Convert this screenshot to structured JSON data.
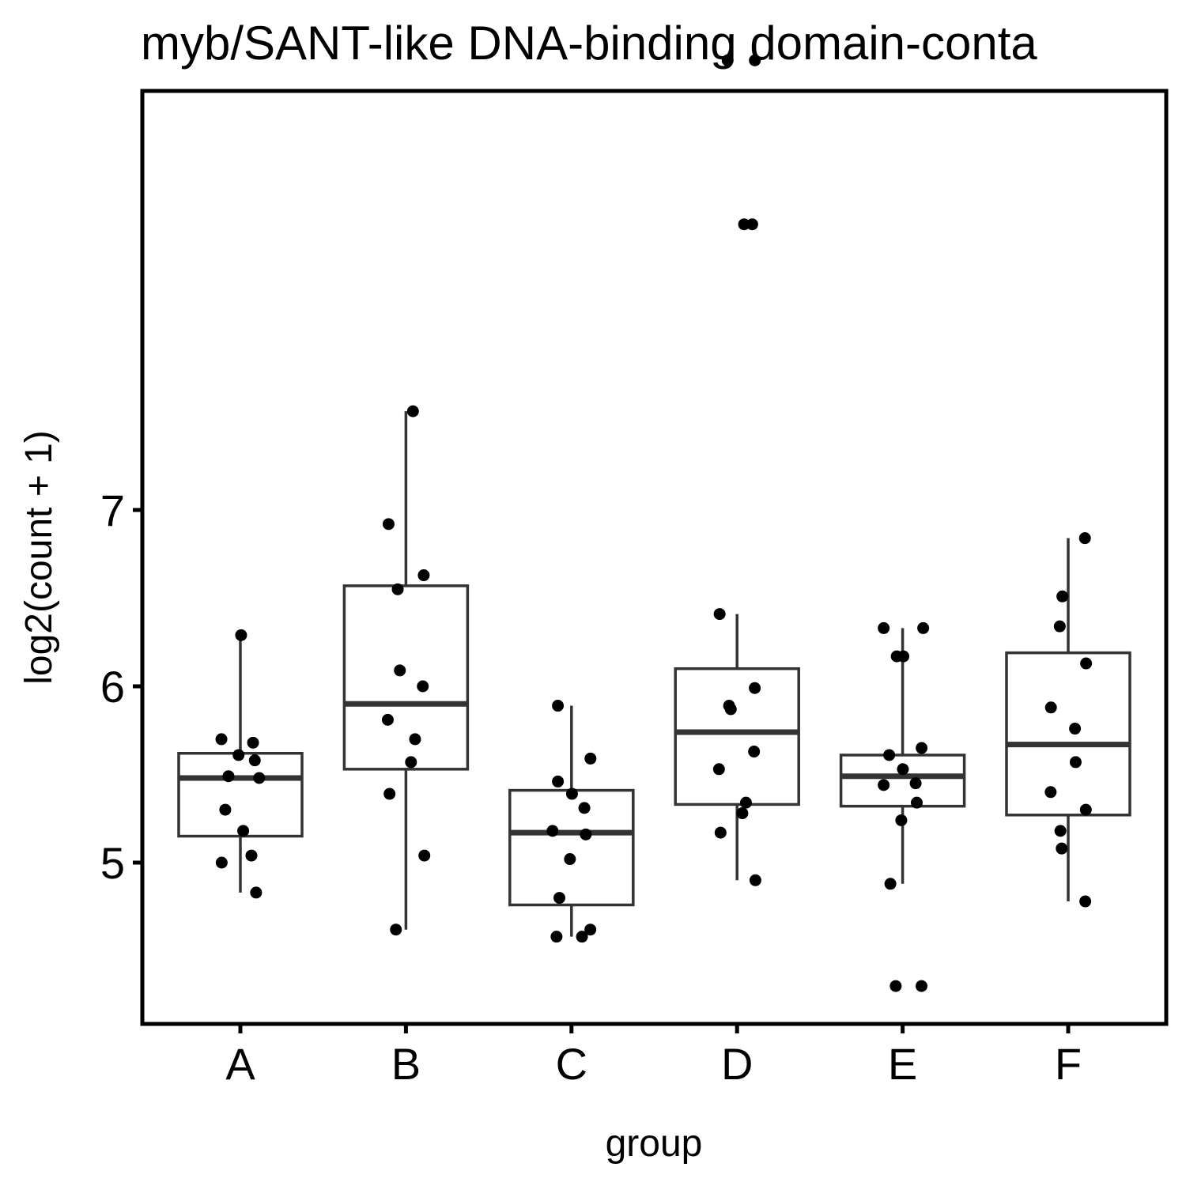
{
  "chart_data": {
    "type": "box",
    "title": "myb/SANT-like DNA-binding domain-conta",
    "xlabel": "group",
    "ylabel": "log2(count + 1)",
    "categories": [
      "A",
      "B",
      "C",
      "D",
      "E",
      "F"
    ],
    "y_ticks": [
      5,
      6,
      7
    ],
    "ylim": [
      4.3,
      9.6
    ],
    "grid": false,
    "boxes": [
      {
        "group": "A",
        "q1": 5.15,
        "median": 5.48,
        "q3": 5.62,
        "whisker_low": 4.83,
        "whisker_high": 6.29
      },
      {
        "group": "B",
        "q1": 5.53,
        "median": 5.9,
        "q3": 6.57,
        "whisker_low": 4.62,
        "whisker_high": 7.56
      },
      {
        "group": "C",
        "q1": 4.76,
        "median": 5.17,
        "q3": 5.41,
        "whisker_low": 4.58,
        "whisker_high": 5.89
      },
      {
        "group": "D",
        "q1": 5.33,
        "median": 5.74,
        "q3": 6.1,
        "whisker_low": 4.9,
        "whisker_high": 6.41
      },
      {
        "group": "E",
        "q1": 5.32,
        "median": 5.49,
        "q3": 5.61,
        "whisker_low": 4.88,
        "whisker_high": 6.33
      },
      {
        "group": "F",
        "q1": 5.27,
        "median": 5.67,
        "q3": 6.19,
        "whisker_low": 4.78,
        "whisker_high": 6.84
      }
    ],
    "points": [
      {
        "group": "A",
        "values": [
          6.29,
          5.68,
          5.7,
          5.58,
          5.61,
          5.49,
          5.48,
          5.3,
          5.18,
          5.04,
          5.0,
          4.83
        ]
      },
      {
        "group": "B",
        "values": [
          7.56,
          6.92,
          6.63,
          6.55,
          6.09,
          6.0,
          5.81,
          5.7,
          5.57,
          5.39,
          5.04,
          4.62
        ]
      },
      {
        "group": "C",
        "values": [
          5.89,
          5.59,
          5.46,
          5.39,
          5.31,
          5.18,
          5.16,
          5.02,
          4.8,
          4.62,
          4.58,
          4.58
        ]
      },
      {
        "group": "D",
        "values": [
          9.55,
          9.55,
          8.62,
          8.62,
          6.41,
          5.99,
          5.89,
          5.87,
          5.63,
          5.53,
          5.34,
          5.28,
          5.17,
          4.9
        ]
      },
      {
        "group": "E",
        "values": [
          6.33,
          6.33,
          6.17,
          6.17,
          5.65,
          5.61,
          5.53,
          5.45,
          5.44,
          5.34,
          5.24,
          4.88,
          4.3,
          4.3
        ]
      },
      {
        "group": "F",
        "values": [
          6.84,
          6.51,
          6.34,
          6.13,
          5.88,
          5.76,
          5.57,
          5.4,
          5.3,
          5.18,
          5.08,
          4.78
        ]
      }
    ],
    "colors": {
      "box_line": "#333333",
      "point": "#000000",
      "panel_border": "#000000",
      "background": "#ffffff"
    }
  }
}
